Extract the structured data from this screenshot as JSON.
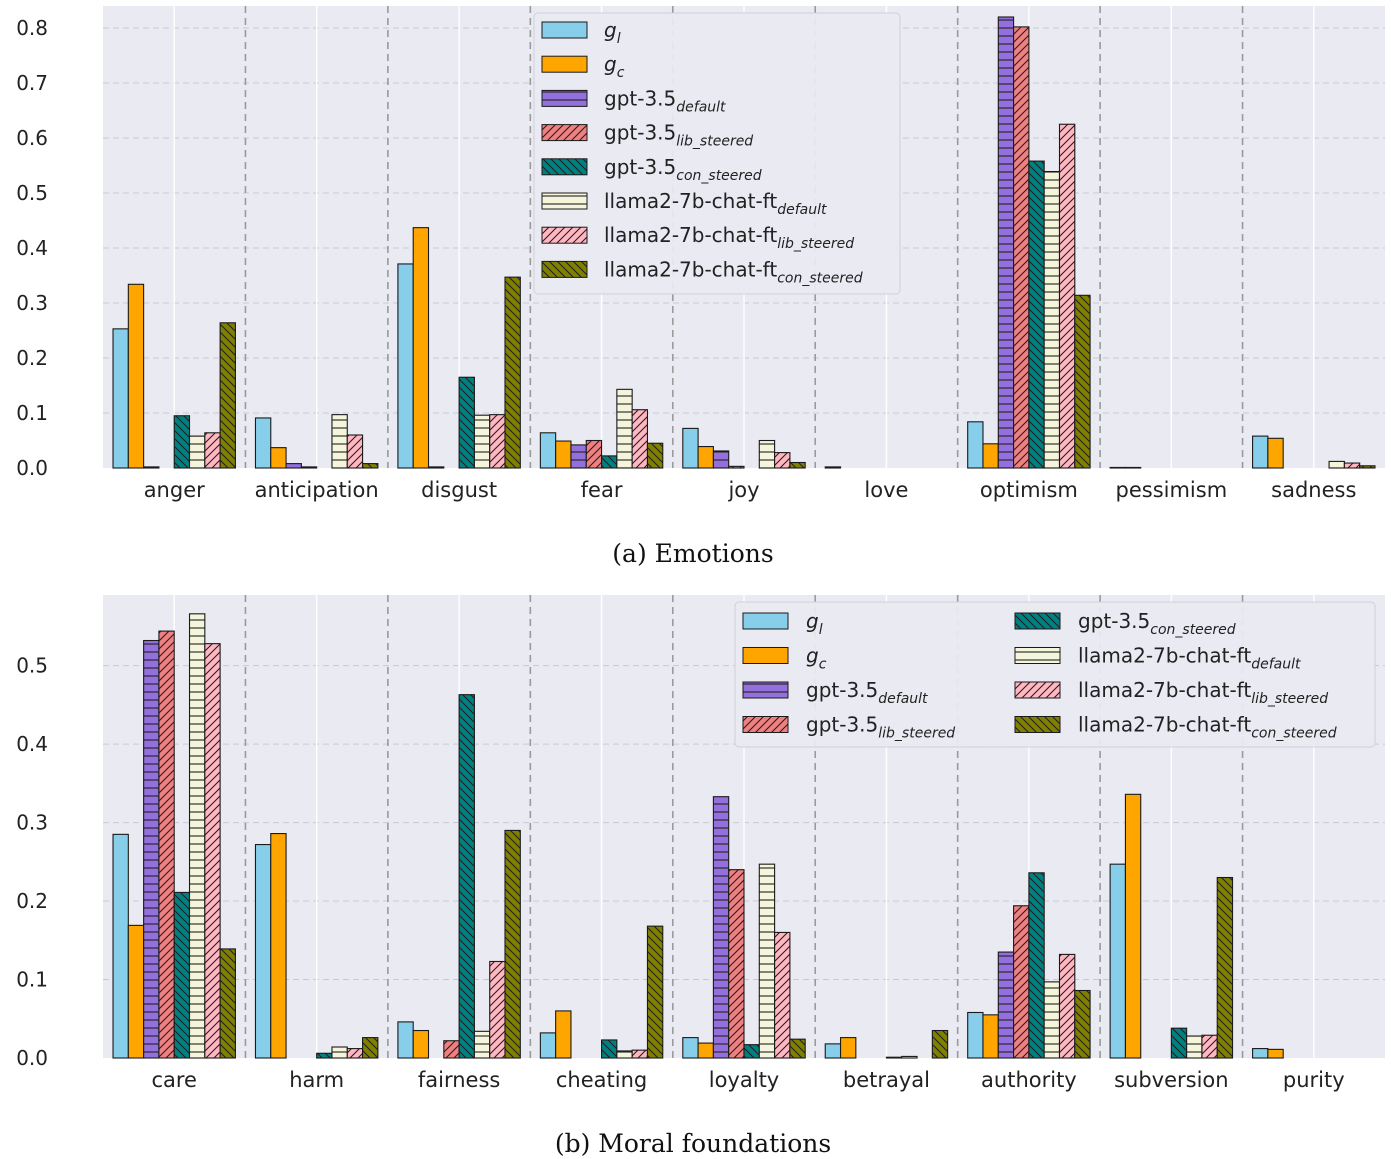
{
  "colors": {
    "g_l": "#87ceeb",
    "g_c": "#ffa500",
    "gpt_default": "#9370db",
    "gpt_lib": "#f08080",
    "gpt_con": "#008080",
    "llama_default": "#f5f5dc",
    "llama_lib": "#ffb6c1",
    "llama_con": "#808000",
    "background": "#eaeaf2"
  },
  "series_legend": [
    {
      "key": "g_l",
      "base": "g",
      "sub": "l",
      "italic_base": true,
      "hatch": "none"
    },
    {
      "key": "g_c",
      "base": "g",
      "sub": "c",
      "italic_base": true,
      "hatch": "none"
    },
    {
      "key": "gpt_default",
      "base": "gpt-3.5",
      "sub": "default",
      "italic_base": false,
      "hatch": "horizontal"
    },
    {
      "key": "gpt_lib",
      "base": "gpt-3.5",
      "sub": "lib_steered",
      "italic_base": false,
      "hatch": "diagonal-forward"
    },
    {
      "key": "gpt_con",
      "base": "gpt-3.5",
      "sub": "con_steered",
      "italic_base": false,
      "hatch": "diagonal-back"
    },
    {
      "key": "llama_default",
      "base": "llama2-7b-chat-ft",
      "sub": "default",
      "italic_base": false,
      "hatch": "horizontal"
    },
    {
      "key": "llama_lib",
      "base": "llama2-7b-chat-ft",
      "sub": "lib_steered",
      "italic_base": false,
      "hatch": "diagonal-forward"
    },
    {
      "key": "llama_con",
      "base": "llama2-7b-chat-ft",
      "sub": "con_steered",
      "italic_base": false,
      "hatch": "diagonal-back"
    }
  ],
  "chart_data": [
    {
      "type": "bar",
      "caption": "(a) Emotions",
      "categories": [
        "anger",
        "anticipation",
        "disgust",
        "fear",
        "joy",
        "love",
        "optimism",
        "pessimism",
        "sadness"
      ],
      "ylim": [
        0,
        0.84
      ],
      "yticks": [
        "0.0",
        "0.1",
        "0.2",
        "0.3",
        "0.4",
        "0.5",
        "0.6",
        "0.7",
        "0.8"
      ],
      "grid": true,
      "legend_position": "top-center",
      "legend_columns": 1,
      "series": [
        {
          "key": "g_l",
          "values": [
            0.253,
            0.091,
            0.371,
            0.064,
            0.072,
            0.002,
            0.084,
            0.001,
            0.058
          ]
        },
        {
          "key": "g_c",
          "values": [
            0.334,
            0.037,
            0.437,
            0.049,
            0.039,
            0.0,
            0.044,
            0.001,
            0.054
          ]
        },
        {
          "key": "gpt_default",
          "values": [
            0.002,
            0.008,
            0.002,
            0.042,
            0.031,
            0.0,
            0.82,
            0.0,
            0.0
          ]
        },
        {
          "key": "gpt_lib",
          "values": [
            0.0,
            0.002,
            0.0,
            0.05,
            0.003,
            0.0,
            0.802,
            0.0,
            0.0
          ]
        },
        {
          "key": "gpt_con",
          "values": [
            0.095,
            0.0,
            0.165,
            0.022,
            0.0,
            0.0,
            0.558,
            0.0,
            0.0
          ]
        },
        {
          "key": "llama_default",
          "values": [
            0.058,
            0.097,
            0.096,
            0.143,
            0.05,
            0.0,
            0.539,
            0.0,
            0.012
          ]
        },
        {
          "key": "llama_lib",
          "values": [
            0.064,
            0.06,
            0.097,
            0.106,
            0.028,
            0.0,
            0.625,
            0.0,
            0.009
          ]
        },
        {
          "key": "llama_con",
          "values": [
            0.264,
            0.008,
            0.347,
            0.045,
            0.01,
            0.0,
            0.314,
            0.0,
            0.004
          ]
        }
      ]
    },
    {
      "type": "bar",
      "caption": "(b) Moral foundations",
      "categories": [
        "care",
        "harm",
        "fairness",
        "cheating",
        "loyalty",
        "betrayal",
        "authority",
        "subversion",
        "purity"
      ],
      "ylim": [
        0,
        0.59
      ],
      "yticks": [
        "0.0",
        "0.1",
        "0.2",
        "0.3",
        "0.4",
        "0.5"
      ],
      "grid": true,
      "legend_position": "top-right",
      "legend_columns": 2,
      "series": [
        {
          "key": "g_l",
          "values": [
            0.285,
            0.272,
            0.046,
            0.032,
            0.026,
            0.018,
            0.058,
            0.247,
            0.012
          ]
        },
        {
          "key": "g_c",
          "values": [
            0.169,
            0.286,
            0.035,
            0.06,
            0.019,
            0.026,
            0.055,
            0.336,
            0.011
          ]
        },
        {
          "key": "gpt_default",
          "values": [
            0.532,
            0.0,
            0.0,
            0.0,
            0.333,
            0.0,
            0.135,
            0.0,
            0.0
          ]
        },
        {
          "key": "gpt_lib",
          "values": [
            0.544,
            0.0,
            0.022,
            0.0,
            0.24,
            0.0,
            0.194,
            0.0,
            0.0
          ]
        },
        {
          "key": "gpt_con",
          "values": [
            0.211,
            0.006,
            0.463,
            0.023,
            0.017,
            0.001,
            0.236,
            0.038,
            0.0
          ]
        },
        {
          "key": "llama_default",
          "values": [
            0.566,
            0.014,
            0.034,
            0.009,
            0.247,
            0.002,
            0.097,
            0.028,
            0.0
          ]
        },
        {
          "key": "llama_lib",
          "values": [
            0.528,
            0.012,
            0.123,
            0.01,
            0.16,
            0.0,
            0.132,
            0.029,
            0.0
          ]
        },
        {
          "key": "llama_con",
          "values": [
            0.139,
            0.026,
            0.29,
            0.168,
            0.024,
            0.035,
            0.086,
            0.23,
            0.0
          ]
        }
      ]
    }
  ]
}
